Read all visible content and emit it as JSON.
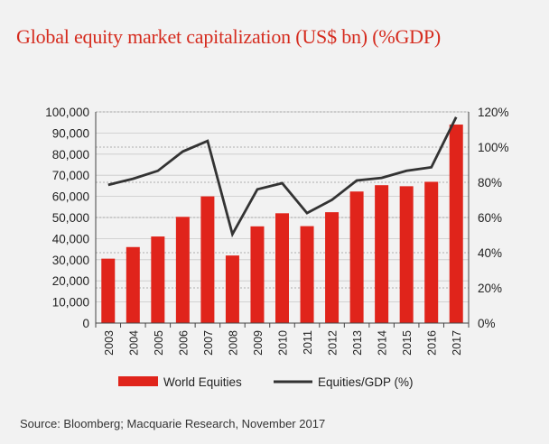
{
  "title": "Global equity market capitalization (US$ bn) (%GDP)",
  "source": "Source: Bloomberg; Macquarie Research, November 2017",
  "colors": {
    "bar": "#e0241b",
    "line": "#333333",
    "title": "#d52b1e",
    "grid": "#999999"
  },
  "chart_data": {
    "type": "bar",
    "categories": [
      "2003",
      "2004",
      "2005",
      "2006",
      "2007",
      "2008",
      "2009",
      "2010",
      "2011",
      "2012",
      "2013",
      "2014",
      "2015",
      "2016",
      "2017"
    ],
    "series": [
      {
        "name": "World Equities",
        "type": "bar",
        "axis": "left",
        "values": [
          30500,
          36000,
          41000,
          50300,
          60000,
          32000,
          45800,
          52000,
          45900,
          52500,
          62300,
          65300,
          64800,
          66900,
          94000
        ]
      },
      {
        "name": "Equities/GDP (%)",
        "type": "line",
        "axis": "right",
        "values": [
          78.5,
          82,
          86.5,
          97.5,
          103.5,
          50.5,
          76,
          79.5,
          62.5,
          70,
          81,
          82.5,
          86.5,
          88.5,
          117
        ]
      }
    ],
    "y_left": {
      "min": 0,
      "max": 100000,
      "ticks": [
        "0",
        "10,000",
        "20,000",
        "30,000",
        "40,000",
        "50,000",
        "60,000",
        "70,000",
        "80,000",
        "90,000",
        "100,000"
      ]
    },
    "y_right": {
      "min": 0,
      "max": 120,
      "ticks": [
        "0%",
        "20%",
        "40%",
        "60%",
        "80%",
        "100%",
        "120%"
      ]
    },
    "grid": "dotted horizontal",
    "legend_position": "bottom"
  }
}
